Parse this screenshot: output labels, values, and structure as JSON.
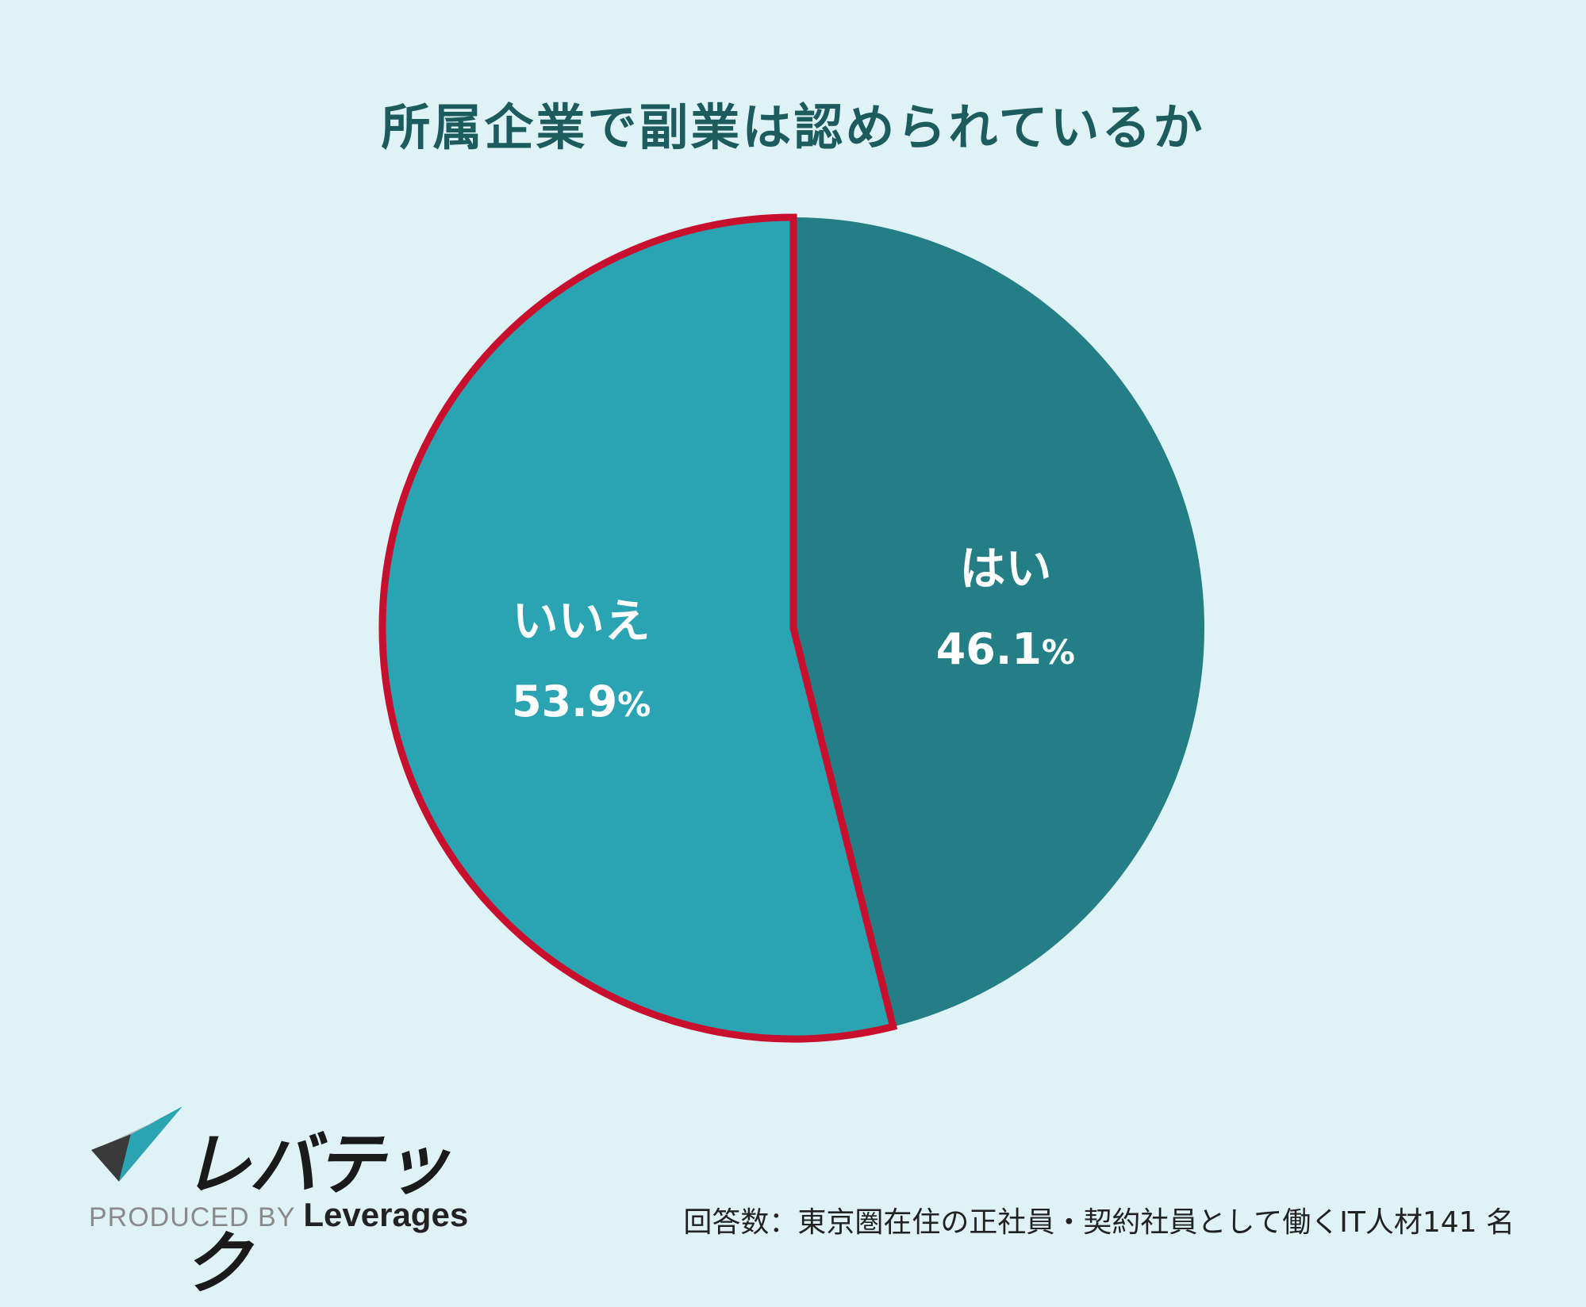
{
  "chart_data": {
    "type": "pie",
    "title": "所属企業で副業は認められているか",
    "slices": [
      {
        "label": "はい",
        "value": 46.1,
        "display": "46.1",
        "unit": "%",
        "color": "#237f85",
        "highlighted": false
      },
      {
        "label": "いいえ",
        "value": 53.9,
        "display": "53.9",
        "unit": "%",
        "color": "#2aa3b3",
        "highlighted": true
      }
    ],
    "highlight_color": "#c8102e",
    "start_angle": "12 o'clock",
    "direction": "clockwise"
  },
  "logo": {
    "name": "レバテック",
    "produced_by": "PRODUCED BY",
    "company": "Leverages"
  },
  "footnote": "回答数：東京圏在住の正社員・契約社員として働くIT人材141 名",
  "colors": {
    "background": "#dff3f7",
    "title": "#1c5c5e"
  }
}
